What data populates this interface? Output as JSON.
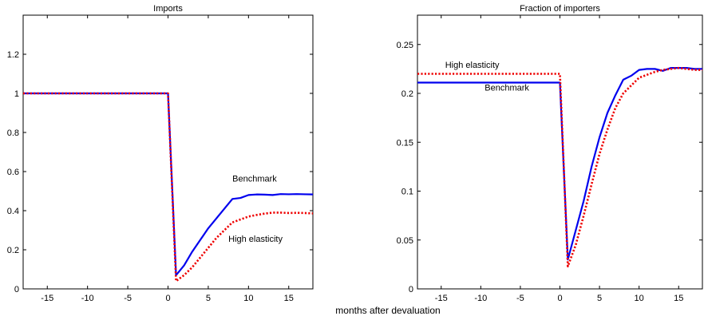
{
  "figure": {
    "shared_xlabel": "months after devaluation"
  },
  "chart_data": [
    {
      "type": "line",
      "title": "Imports",
      "xlabel": "",
      "ylabel": "",
      "xlim": [
        -18,
        18
      ],
      "ylim": [
        0,
        1.4
      ],
      "xticks": [
        -15,
        -10,
        -5,
        0,
        5,
        10,
        15
      ],
      "yticks": [
        0,
        0.2,
        0.4,
        0.6,
        0.8,
        1,
        1.2
      ],
      "ytick_labels": [
        "0",
        "0.2",
        "0.4",
        "0.6",
        "0.8",
        "1",
        "1.2"
      ],
      "grid": false,
      "annotations": [
        {
          "text": "Benchmark",
          "x": 8,
          "y": 0.55,
          "color": "#000000"
        },
        {
          "text": "High elasticity",
          "x": 7.5,
          "y": 0.24,
          "color": "#000000"
        }
      ],
      "series": [
        {
          "name": "Benchmark",
          "color": "#0000ee",
          "style": "solid",
          "x": [
            -18,
            0,
            1,
            2,
            3,
            4,
            5,
            6,
            7,
            8,
            9,
            10,
            11,
            12,
            13,
            14,
            15,
            16,
            17,
            18
          ],
          "y": [
            1,
            1,
            0.07,
            0.12,
            0.19,
            0.25,
            0.31,
            0.36,
            0.41,
            0.46,
            0.465,
            0.48,
            0.483,
            0.482,
            0.48,
            0.485,
            0.484,
            0.485,
            0.484,
            0.483
          ]
        },
        {
          "name": "High elasticity",
          "color": "#ee0000",
          "style": "dotted",
          "x": [
            -18,
            0,
            1,
            2,
            3,
            4,
            5,
            6,
            7,
            8,
            9,
            10,
            11,
            12,
            13,
            14,
            15,
            16,
            17,
            18
          ],
          "y": [
            1,
            1,
            0.04,
            0.07,
            0.11,
            0.16,
            0.21,
            0.26,
            0.3,
            0.34,
            0.355,
            0.37,
            0.378,
            0.385,
            0.39,
            0.39,
            0.388,
            0.389,
            0.388,
            0.386
          ]
        }
      ]
    },
    {
      "type": "line",
      "title": "Fraction of importers",
      "xlabel": "",
      "ylabel": "",
      "xlim": [
        -18,
        18
      ],
      "ylim": [
        0,
        0.28
      ],
      "xticks": [
        -15,
        -10,
        -5,
        0,
        5,
        10,
        15
      ],
      "yticks": [
        0,
        0.05,
        0.1,
        0.15,
        0.2,
        0.25
      ],
      "ytick_labels": [
        "0",
        "0.05",
        "0.1",
        "0.15",
        "0.2",
        "0.25"
      ],
      "grid": false,
      "annotations": [
        {
          "text": "High elasticity",
          "x": -14.5,
          "y": 0.226,
          "color": "#000000"
        },
        {
          "text": "Benchmark",
          "x": -9.5,
          "y": 0.203,
          "color": "#000000"
        }
      ],
      "series": [
        {
          "name": "Benchmark",
          "color": "#0000ee",
          "style": "solid",
          "x": [
            -18,
            0,
            1,
            2,
            3,
            4,
            5,
            6,
            7,
            8,
            9,
            10,
            11,
            12,
            13,
            14,
            15,
            16,
            17,
            18
          ],
          "y": [
            0.211,
            0.211,
            0.03,
            0.06,
            0.09,
            0.125,
            0.155,
            0.18,
            0.198,
            0.214,
            0.218,
            0.224,
            0.225,
            0.225,
            0.223,
            0.226,
            0.226,
            0.226,
            0.225,
            0.225
          ]
        },
        {
          "name": "High elasticity",
          "color": "#ee0000",
          "style": "dotted",
          "x": [
            -18,
            0,
            1,
            2,
            3,
            4,
            5,
            6,
            7,
            8,
            9,
            10,
            11,
            12,
            13,
            14,
            15,
            16,
            17,
            18
          ],
          "y": [
            0.22,
            0.22,
            0.023,
            0.045,
            0.075,
            0.107,
            0.138,
            0.163,
            0.185,
            0.2,
            0.208,
            0.216,
            0.219,
            0.222,
            0.224,
            0.225,
            0.226,
            0.225,
            0.224,
            0.224
          ]
        }
      ]
    }
  ]
}
